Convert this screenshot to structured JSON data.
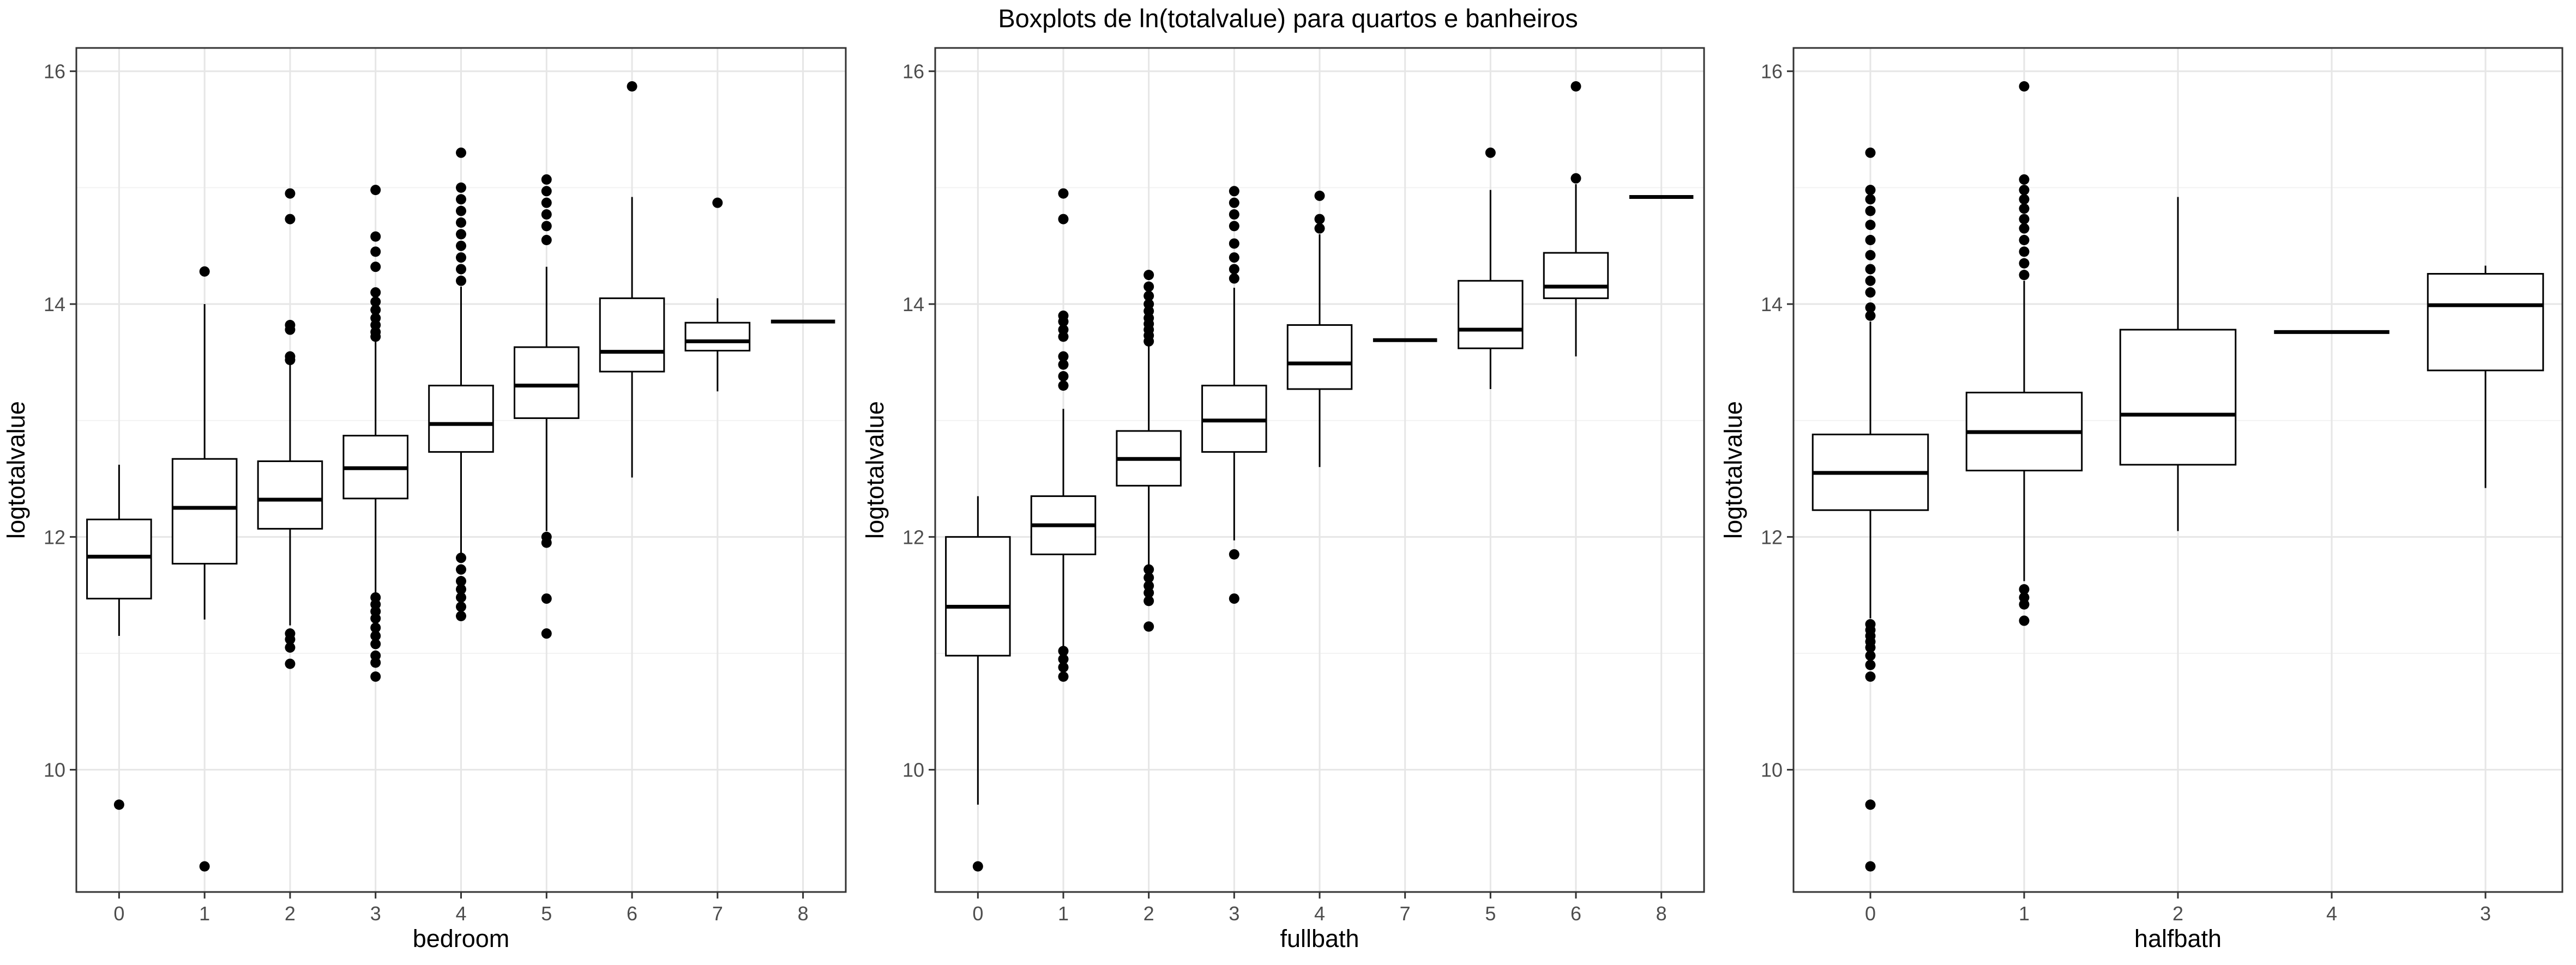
{
  "title": "Boxplots de ln(totalvalue) para quartos e banheiros",
  "chart_data": [
    {
      "type": "boxplot",
      "xlabel": "bedroom",
      "ylabel": "logtotalvalue",
      "ylim": [
        8.95,
        16.2
      ],
      "yticks": [
        10,
        12,
        14,
        16
      ],
      "grid": true,
      "categories": [
        "0",
        "1",
        "2",
        "3",
        "4",
        "5",
        "6",
        "7",
        "8"
      ],
      "boxes": [
        {
          "label": "0",
          "whisker_low": 11.15,
          "q1": 11.47,
          "median": 11.83,
          "q3": 12.15,
          "whisker_high": 12.62,
          "outliers": [
            9.7
          ]
        },
        {
          "label": "1",
          "whisker_low": 11.29,
          "q1": 11.77,
          "median": 12.25,
          "q3": 12.67,
          "whisker_high": 14.0,
          "outliers": [
            14.28,
            9.17
          ]
        },
        {
          "label": "2",
          "whisker_low": 11.24,
          "q1": 12.07,
          "median": 12.32,
          "q3": 12.65,
          "whisker_high": 13.5,
          "outliers": [
            14.95,
            14.73,
            13.82,
            13.78,
            13.55,
            13.52,
            11.17,
            11.12,
            11.05,
            10.91
          ]
        },
        {
          "label": "3",
          "whisker_low": 11.52,
          "q1": 12.33,
          "median": 12.59,
          "q3": 12.87,
          "whisker_high": 13.68,
          "outliers": [
            14.98,
            14.58,
            14.45,
            14.32,
            14.1,
            14.02,
            13.95,
            13.88,
            13.82,
            13.76,
            13.72,
            11.48,
            11.42,
            11.36,
            11.3,
            11.22,
            11.15,
            11.08,
            10.98,
            10.92,
            10.8
          ]
        },
        {
          "label": "4",
          "whisker_low": 11.86,
          "q1": 12.73,
          "median": 12.97,
          "q3": 13.3,
          "whisker_high": 14.15,
          "outliers": [
            15.3,
            15.0,
            14.9,
            14.8,
            14.7,
            14.6,
            14.5,
            14.4,
            14.3,
            14.2,
            11.82,
            11.72,
            11.62,
            11.55,
            11.48,
            11.4,
            11.32
          ]
        },
        {
          "label": "5",
          "whisker_low": 12.05,
          "q1": 13.02,
          "median": 13.3,
          "q3": 13.63,
          "whisker_high": 14.32,
          "outliers": [
            15.07,
            14.97,
            14.87,
            14.77,
            14.67,
            14.55,
            12.0,
            11.95,
            11.47,
            11.17
          ]
        },
        {
          "label": "6",
          "whisker_low": 12.51,
          "q1": 13.42,
          "median": 13.59,
          "q3": 14.05,
          "whisker_high": 14.92,
          "outliers": [
            15.87
          ]
        },
        {
          "label": "7",
          "whisker_low": 13.25,
          "q1": 13.6,
          "median": 13.68,
          "q3": 13.84,
          "whisker_high": 14.05,
          "outliers": [
            14.87
          ]
        },
        {
          "label": "8",
          "whisker_low": 13.85,
          "q1": 13.85,
          "median": 13.85,
          "q3": 13.85,
          "whisker_high": 13.85,
          "outliers": []
        }
      ]
    },
    {
      "type": "boxplot",
      "xlabel": "fullbath",
      "ylabel": "logtotalvalue",
      "ylim": [
        8.95,
        16.2
      ],
      "yticks": [
        10,
        12,
        14,
        16
      ],
      "grid": true,
      "categories": [
        "0",
        "1",
        "2",
        "3",
        "4",
        "7",
        "5",
        "6",
        "8"
      ],
      "boxes": [
        {
          "label": "0",
          "whisker_low": 9.7,
          "q1": 10.98,
          "median": 11.4,
          "q3": 12.0,
          "whisker_high": 12.35,
          "outliers": [
            9.17
          ]
        },
        {
          "label": "1",
          "whisker_low": 11.05,
          "q1": 11.85,
          "median": 12.1,
          "q3": 12.35,
          "whisker_high": 13.1,
          "outliers": [
            14.95,
            14.73,
            13.9,
            13.85,
            13.78,
            13.72,
            13.55,
            13.48,
            13.38,
            13.3,
            11.02,
            10.95,
            10.88,
            10.8
          ]
        },
        {
          "label": "2",
          "whisker_low": 11.75,
          "q1": 12.44,
          "median": 12.67,
          "q3": 12.91,
          "whisker_high": 13.65,
          "outliers": [
            14.25,
            14.15,
            14.07,
            14.0,
            13.94,
            13.88,
            13.83,
            13.78,
            13.73,
            13.68,
            11.72,
            11.65,
            11.58,
            11.52,
            11.45,
            11.23
          ]
        },
        {
          "label": "3",
          "whisker_low": 11.97,
          "q1": 12.73,
          "median": 13.0,
          "q3": 13.3,
          "whisker_high": 14.14,
          "outliers": [
            14.97,
            14.87,
            14.77,
            14.67,
            14.52,
            14.4,
            14.3,
            14.22,
            11.85,
            11.47
          ]
        },
        {
          "label": "4",
          "whisker_low": 12.6,
          "q1": 13.27,
          "median": 13.49,
          "q3": 13.82,
          "whisker_high": 14.6,
          "outliers": [
            14.93,
            14.73,
            14.65
          ]
        },
        {
          "label": "7",
          "whisker_low": 13.69,
          "q1": 13.69,
          "median": 13.69,
          "q3": 13.69,
          "whisker_high": 13.69,
          "outliers": []
        },
        {
          "label": "5",
          "whisker_low": 13.27,
          "q1": 13.62,
          "median": 13.78,
          "q3": 14.2,
          "whisker_high": 14.98,
          "outliers": [
            15.3
          ]
        },
        {
          "label": "6",
          "whisker_low": 13.55,
          "q1": 14.05,
          "median": 14.15,
          "q3": 14.44,
          "whisker_high": 15.03,
          "outliers": [
            15.87,
            15.08
          ]
        },
        {
          "label": "8",
          "whisker_low": 14.92,
          "q1": 14.92,
          "median": 14.92,
          "q3": 14.92,
          "whisker_high": 14.92,
          "outliers": []
        }
      ]
    },
    {
      "type": "boxplot",
      "xlabel": "halfbath",
      "ylabel": "logtotalvalue",
      "ylim": [
        8.95,
        16.2
      ],
      "yticks": [
        10,
        12,
        14,
        16
      ],
      "grid": true,
      "categories": [
        "0",
        "1",
        "2",
        "4",
        "3"
      ],
      "boxes": [
        {
          "label": "0",
          "whisker_low": 11.3,
          "q1": 12.23,
          "median": 12.55,
          "q3": 12.88,
          "whisker_high": 13.85,
          "outliers": [
            15.3,
            14.98,
            14.9,
            14.8,
            14.68,
            14.55,
            14.42,
            14.3,
            14.2,
            14.1,
            13.97,
            13.9,
            11.25,
            11.2,
            11.15,
            11.1,
            11.05,
            10.98,
            10.9,
            10.8,
            9.7,
            9.17
          ]
        },
        {
          "label": "1",
          "whisker_low": 11.62,
          "q1": 12.57,
          "median": 12.9,
          "q3": 13.24,
          "whisker_high": 14.2,
          "outliers": [
            15.87,
            15.07,
            14.98,
            14.9,
            14.82,
            14.73,
            14.65,
            14.55,
            14.45,
            14.35,
            14.25,
            11.55,
            11.48,
            11.42,
            11.28
          ]
        },
        {
          "label": "2",
          "whisker_low": 12.05,
          "q1": 12.62,
          "median": 13.05,
          "q3": 13.78,
          "whisker_high": 14.92,
          "outliers": []
        },
        {
          "label": "4",
          "whisker_low": 13.76,
          "q1": 13.76,
          "median": 13.76,
          "q3": 13.76,
          "whisker_high": 13.76,
          "outliers": []
        },
        {
          "label": "3",
          "whisker_low": 12.42,
          "q1": 13.43,
          "median": 13.99,
          "q3": 14.26,
          "whisker_high": 14.33,
          "outliers": []
        }
      ]
    }
  ]
}
